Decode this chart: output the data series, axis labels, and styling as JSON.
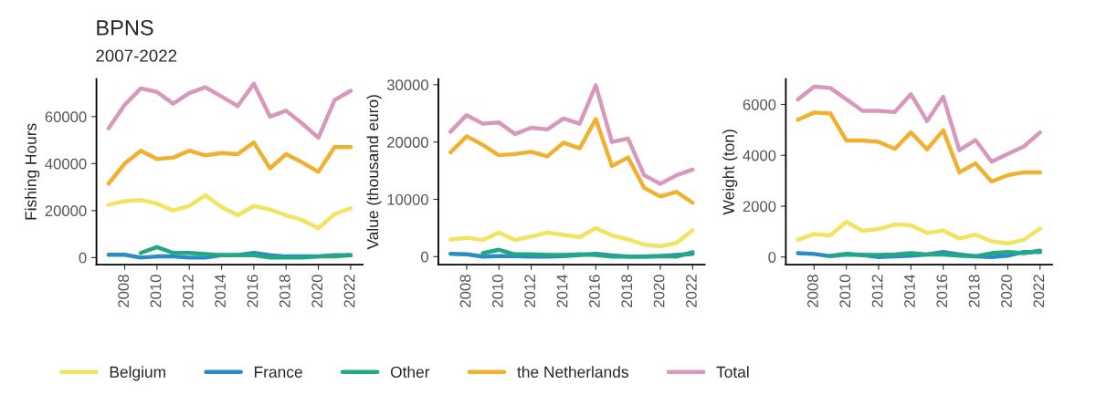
{
  "chart_data": [
    {
      "type": "line",
      "title": "BPNS",
      "subtitle": "2007-2022",
      "ylabel": "Fishing Hours",
      "legend": "bottom",
      "grid": false,
      "x": [
        2007,
        2008,
        2009,
        2010,
        2011,
        2012,
        2013,
        2014,
        2015,
        2016,
        2017,
        2018,
        2019,
        2020,
        2021,
        2022
      ],
      "xlim": [
        2006.25,
        2022.75
      ],
      "xticks": [
        2008,
        2010,
        2012,
        2014,
        2016,
        2018,
        2020,
        2022
      ],
      "ylim": [
        -3000,
        76000
      ],
      "yticks": [
        0,
        20000,
        40000,
        60000
      ],
      "series": [
        {
          "name": "Belgium",
          "color": "#f0e460",
          "values": [
            22500,
            24000,
            24500,
            23000,
            20000,
            22000,
            26500,
            21500,
            18000,
            22000,
            20500,
            18000,
            16000,
            12500,
            18500,
            21000
          ]
        },
        {
          "name": "France",
          "color": "#2b8cc4",
          "values": [
            1200,
            1200,
            0,
            500,
            500,
            0,
            0,
            1000,
            1000,
            2000,
            1000,
            500,
            500,
            500,
            1000,
            1000
          ]
        },
        {
          "name": "Other",
          "color": "#22a884",
          "values": [
            null,
            null,
            2000,
            4500,
            2000,
            2000,
            1500,
            1000,
            1000,
            1000,
            0,
            0,
            0,
            500,
            500,
            1000
          ]
        },
        {
          "name": "the Netherlands",
          "color": "#f0b030",
          "values": [
            31500,
            40000,
            45500,
            42000,
            42500,
            45500,
            43500,
            44500,
            44000,
            49000,
            38000,
            44000,
            40500,
            36500,
            47000,
            47000
          ]
        },
        {
          "name": "Total",
          "color": "#d898bc",
          "values": [
            55000,
            65000,
            72000,
            70500,
            65500,
            70000,
            72500,
            68500,
            64500,
            74000,
            60000,
            62500,
            57000,
            51000,
            67000,
            71000
          ]
        }
      ]
    },
    {
      "type": "line",
      "ylabel": "Value (thousand euro)",
      "grid": false,
      "x": [
        2007,
        2008,
        2009,
        2010,
        2011,
        2012,
        2013,
        2014,
        2015,
        2016,
        2017,
        2018,
        2019,
        2020,
        2021,
        2022
      ],
      "xlim": [
        2006.25,
        2022.75
      ],
      "xticks": [
        2008,
        2010,
        2012,
        2014,
        2016,
        2018,
        2020,
        2022
      ],
      "ylim": [
        -1400,
        31000
      ],
      "yticks": [
        0,
        10000,
        20000,
        30000
      ],
      "series": [
        {
          "color": "#f0e460",
          "values": [
            3000,
            3300,
            2900,
            4200,
            2900,
            3500,
            4200,
            3800,
            3400,
            5000,
            3700,
            3000,
            2100,
            1800,
            2400,
            4600
          ]
        },
        {
          "color": "#2b8cc4",
          "values": [
            500,
            400,
            0,
            100,
            100,
            0,
            0,
            100,
            300,
            500,
            200,
            0,
            0,
            100,
            300,
            500
          ]
        },
        {
          "color": "#22a884",
          "values": [
            null,
            null,
            600,
            1200,
            400,
            400,
            300,
            300,
            400,
            300,
            0,
            0,
            0,
            100,
            0,
            800
          ]
        },
        {
          "color": "#f0b030",
          "values": [
            18200,
            21000,
            19500,
            17700,
            17900,
            18300,
            17500,
            19900,
            18900,
            24000,
            15800,
            17300,
            12000,
            10500,
            11300,
            9400
          ]
        },
        {
          "color": "#d898bc",
          "values": [
            21800,
            24700,
            23200,
            23400,
            21400,
            22500,
            22200,
            24100,
            23200,
            29900,
            20000,
            20600,
            14200,
            12700,
            14200,
            15200
          ]
        }
      ]
    },
    {
      "type": "line",
      "ylabel": "Weight (ton)",
      "grid": false,
      "x": [
        2007,
        2008,
        2009,
        2010,
        2011,
        2012,
        2013,
        2014,
        2015,
        2016,
        2017,
        2018,
        2019,
        2020,
        2021,
        2022
      ],
      "xlim": [
        2006.25,
        2022.75
      ],
      "xticks": [
        2008,
        2010,
        2012,
        2014,
        2016,
        2018,
        2020,
        2022
      ],
      "ylim": [
        -300,
        7000
      ],
      "yticks": [
        0,
        2000,
        4000,
        6000
      ],
      "series": [
        {
          "color": "#f0e460",
          "values": [
            680,
            900,
            850,
            1380,
            1030,
            1100,
            1280,
            1250,
            950,
            1040,
            730,
            880,
            620,
            530,
            680,
            1120
          ]
        },
        {
          "color": "#2b8cc4",
          "values": [
            150,
            120,
            30,
            100,
            80,
            0,
            30,
            50,
            100,
            200,
            100,
            30,
            0,
            50,
            200,
            200
          ]
        },
        {
          "color": "#22a884",
          "values": [
            null,
            null,
            50,
            130,
            80,
            80,
            100,
            150,
            100,
            100,
            50,
            30,
            150,
            200,
            150,
            250
          ]
        },
        {
          "color": "#f0b030",
          "values": [
            5400,
            5680,
            5650,
            4580,
            4580,
            4530,
            4250,
            4900,
            4230,
            4980,
            3330,
            3680,
            2970,
            3220,
            3330,
            3330
          ]
        },
        {
          "color": "#d898bc",
          "values": [
            6200,
            6700,
            6650,
            6200,
            5750,
            5750,
            5700,
            6400,
            5350,
            6300,
            4200,
            4600,
            3750,
            4050,
            4350,
            4900
          ]
        }
      ]
    }
  ]
}
